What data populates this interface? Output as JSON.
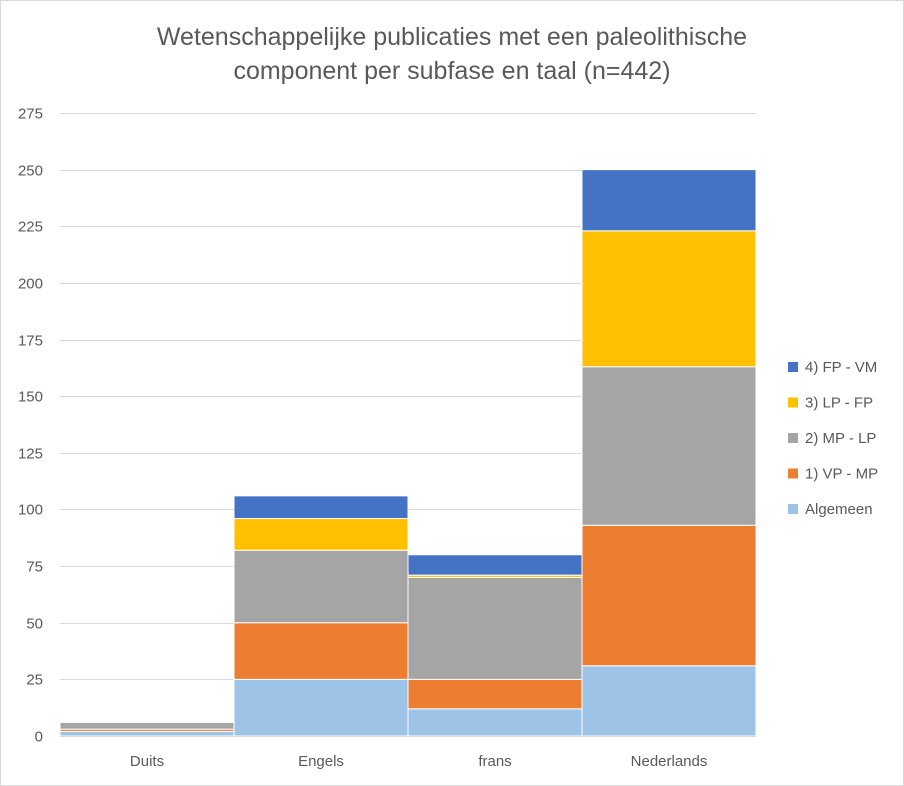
{
  "chart_data": {
    "type": "bar",
    "stacked": true,
    "title": "Wetenschappelijke publicaties met een paleolithische component per subfase en taal (n=442)",
    "title_lines": [
      "Wetenschappelijke publicaties met een paleolithische",
      "component per subfase en taal (n=442)"
    ],
    "categories": [
      "Duits",
      "Engels",
      "frans",
      "Nederlands"
    ],
    "series": [
      {
        "name": "Algemeen",
        "color": "#9dc3e6",
        "values": [
          2,
          25,
          12,
          31
        ]
      },
      {
        "name": "1) VP - MP",
        "color": "#ed7d31",
        "values": [
          1,
          25,
          13,
          62
        ]
      },
      {
        "name": "2) MP - LP",
        "color": "#a5a5a5",
        "values": [
          3,
          32,
          45,
          70
        ]
      },
      {
        "name": "3) LP - FP",
        "color": "#ffc000",
        "values": [
          0,
          14,
          1,
          60
        ]
      },
      {
        "name": "4) FP - VM",
        "color": "#4472c4",
        "values": [
          0,
          10,
          9,
          27
        ]
      }
    ],
    "ylim": [
      0,
      275
    ],
    "yticks": [
      0,
      25,
      50,
      75,
      100,
      125,
      150,
      175,
      200,
      225,
      250,
      275
    ],
    "grid": true,
    "legend_position": "right",
    "xlabel": "",
    "ylabel": ""
  }
}
